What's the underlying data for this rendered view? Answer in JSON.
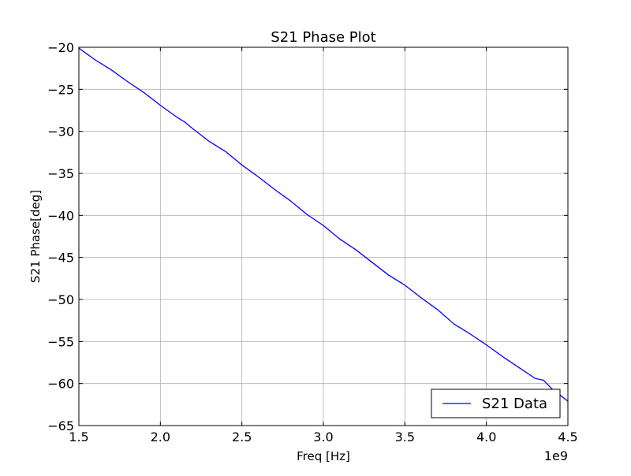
{
  "chart_data": {
    "type": "line",
    "title": "S21 Phase Plot",
    "xlabel": "Freq [Hz]",
    "ylabel": "S21 Phase[deg]",
    "x_offset_label": "1e9",
    "xlim": [
      1.5,
      4.5
    ],
    "ylim": [
      -65,
      -20
    ],
    "x_ticks": [
      1.5,
      2.0,
      2.5,
      3.0,
      3.5,
      4.0,
      4.5
    ],
    "x_tick_labels": [
      "1.5",
      "2.0",
      "2.5",
      "3.0",
      "3.5",
      "4.0",
      "4.5"
    ],
    "y_ticks": [
      -20,
      -25,
      -30,
      -35,
      -40,
      -45,
      -50,
      -55,
      -60,
      -65
    ],
    "y_tick_labels": [
      "−20",
      "−25",
      "−30",
      "−35",
      "−40",
      "−45",
      "−50",
      "−55",
      "−60",
      "−65"
    ],
    "grid": true,
    "legend_position": "lower-right",
    "series": [
      {
        "name": "S21 Data",
        "color": "#0000ff",
        "x": [
          1.5,
          1.6,
          1.7,
          1.8,
          1.9,
          2.0,
          2.1,
          2.15,
          2.2,
          2.3,
          2.4,
          2.5,
          2.6,
          2.7,
          2.8,
          2.9,
          3.0,
          3.1,
          3.2,
          3.3,
          3.4,
          3.5,
          3.6,
          3.7,
          3.8,
          3.9,
          4.0,
          4.1,
          4.2,
          4.3,
          4.35,
          4.4,
          4.5
        ],
        "y": [
          -20.1,
          -21.5,
          -22.7,
          -24.1,
          -25.4,
          -26.9,
          -28.3,
          -28.9,
          -29.7,
          -31.2,
          -32.4,
          -34.0,
          -35.4,
          -36.9,
          -38.3,
          -39.9,
          -41.2,
          -42.8,
          -44.1,
          -45.6,
          -47.1,
          -48.3,
          -49.8,
          -51.2,
          -52.9,
          -54.1,
          -55.4,
          -56.8,
          -58.1,
          -59.4,
          -59.6,
          -60.6,
          -62.1
        ]
      }
    ]
  }
}
